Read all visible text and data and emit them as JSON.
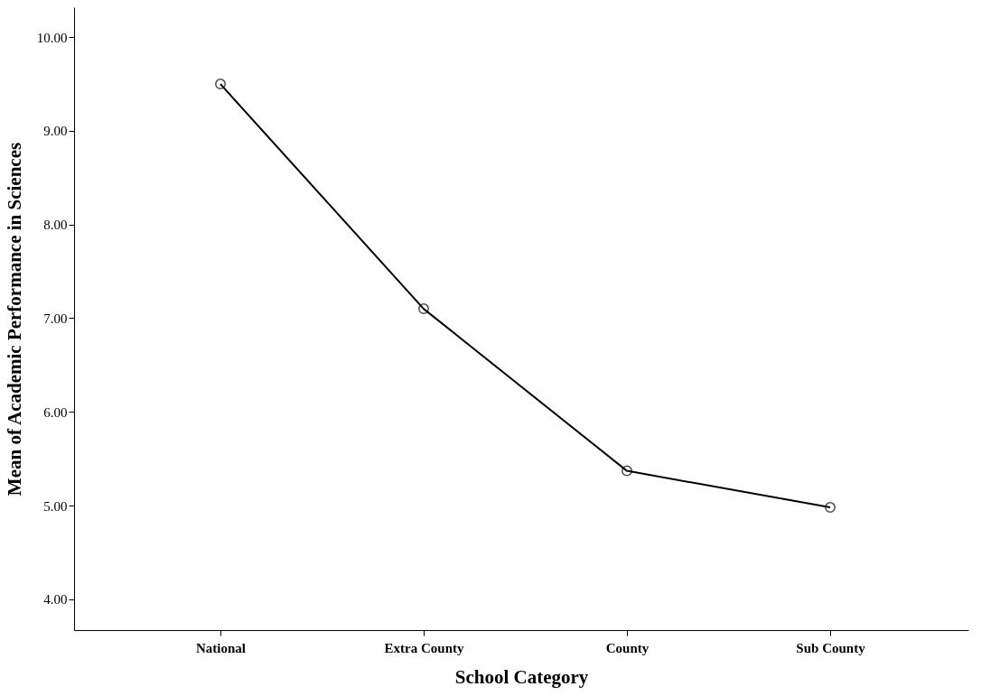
{
  "chart_data": {
    "type": "line",
    "xlabel": "School Category",
    "ylabel": "Mean of Academic Performance in Sciences",
    "categories": [
      "National",
      "Extra County",
      "County",
      "Sub County"
    ],
    "series": [
      {
        "color": "#000000",
        "values": [
          9.5,
          7.1,
          5.37,
          4.98
        ]
      }
    ],
    "ylim": [
      3.67,
      10.32
    ],
    "yticks": [
      {
        "value": 4,
        "label": "4.00"
      },
      {
        "value": 5,
        "label": "5.00"
      },
      {
        "value": 6,
        "label": "6.00"
      },
      {
        "value": 7,
        "label": "7.00"
      },
      {
        "value": 8,
        "label": "8.00"
      },
      {
        "value": 9,
        "label": "9.00"
      },
      {
        "value": 10,
        "label": "10.00"
      }
    ],
    "marker": "circle",
    "line_style": "solid",
    "grid": false
  }
}
